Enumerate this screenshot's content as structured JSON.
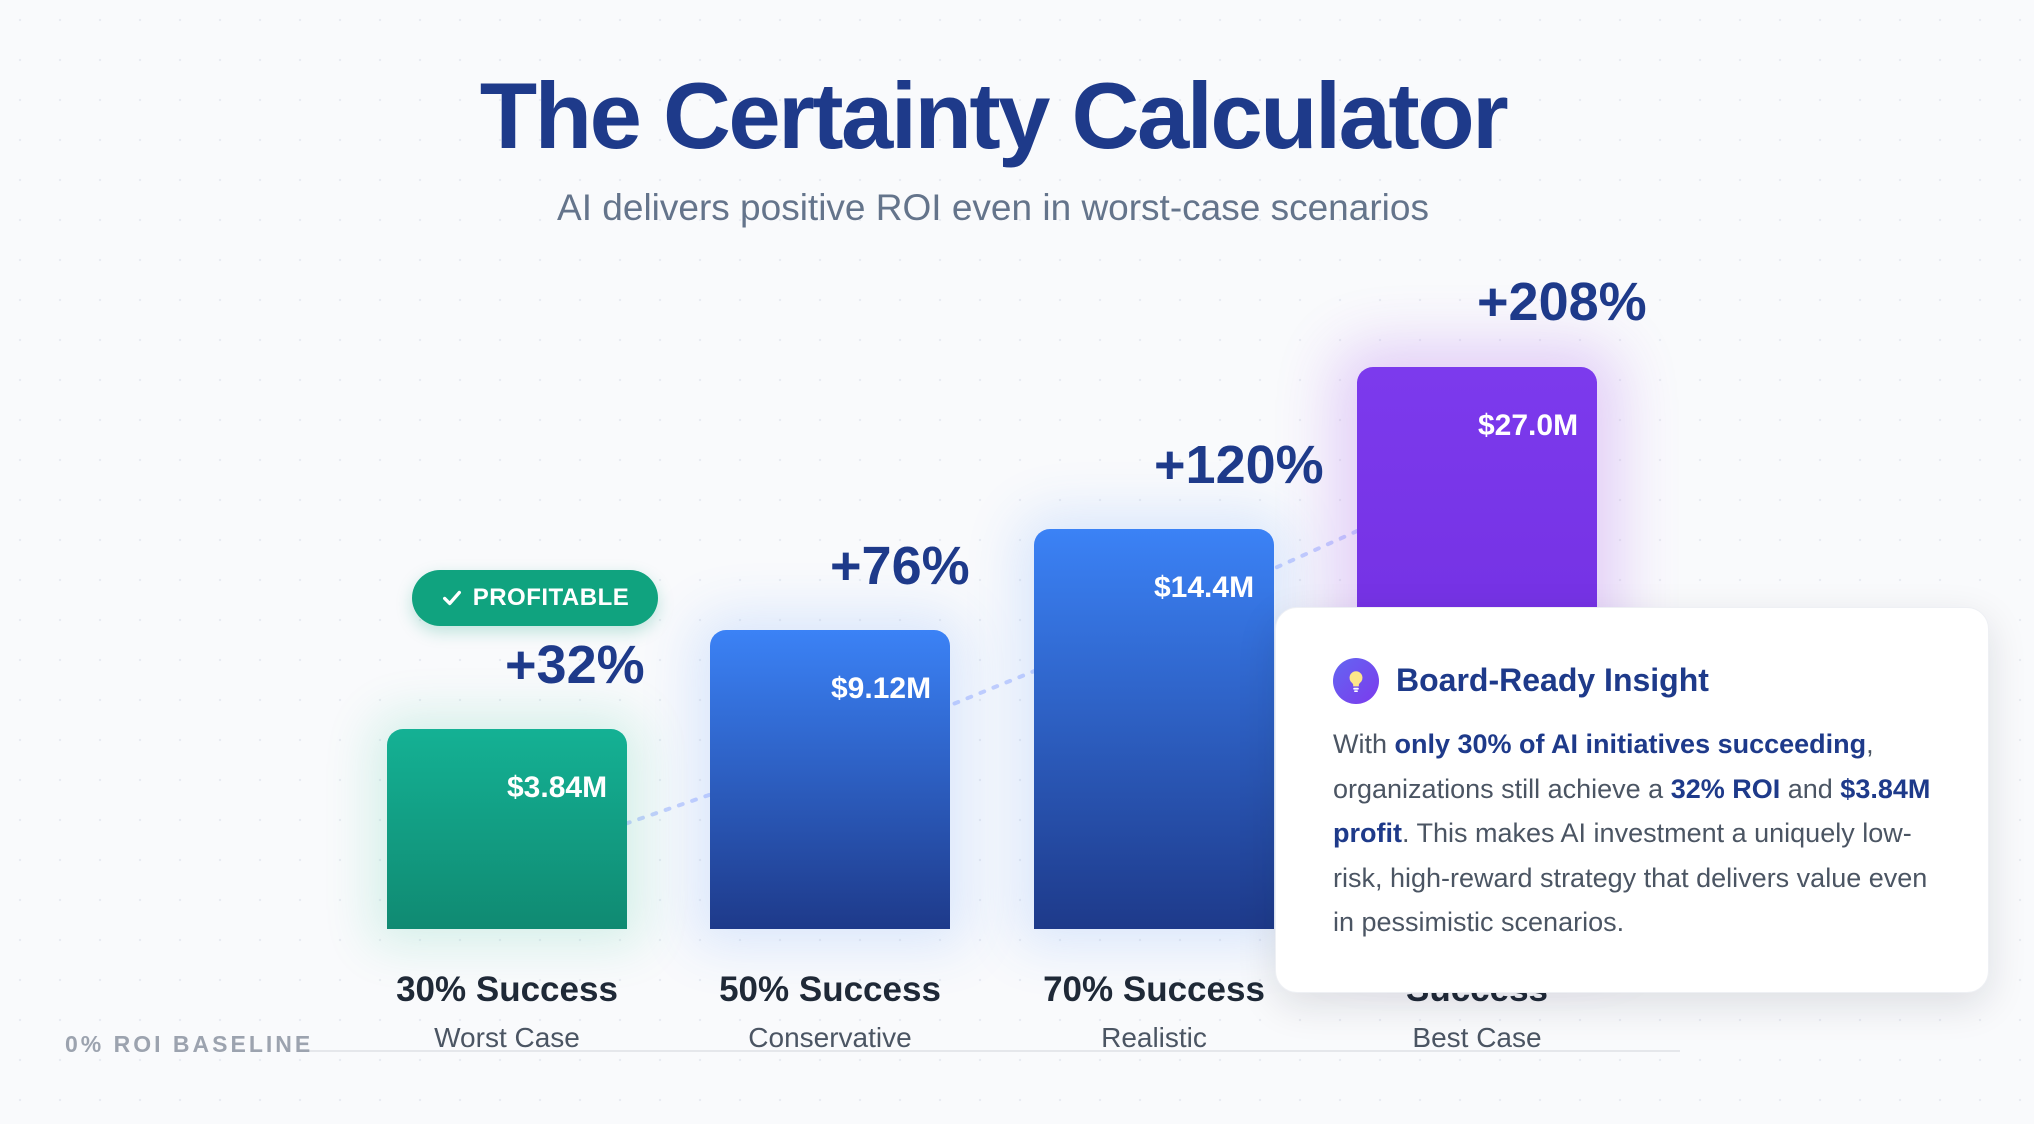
{
  "title": "The Certainty Calculator",
  "subtitle": "AI delivers positive ROI even in worst-case scenarios",
  "badge": {
    "icon": "check-icon",
    "label": "PROFITABLE"
  },
  "baseline_label": "0% ROI BASELINE",
  "chart_data": {
    "type": "bar",
    "title": "The Certainty Calculator",
    "subtitle": "AI delivers positive ROI even in worst-case scenarios",
    "categories": [
      "30% Success",
      "50% Success",
      "70% Success",
      "Success"
    ],
    "category_subtitles": [
      "Worst Case",
      "Conservative",
      "Realistic",
      "Best Case"
    ],
    "values": [
      3.84,
      9.12,
      14.4,
      27.0
    ],
    "value_labels": [
      "$3.84M",
      "$9.12M",
      "$14.4M",
      "$27.0M"
    ],
    "roi": [
      32,
      76,
      120,
      208
    ],
    "roi_labels": [
      "+32%",
      "+76%",
      "+120%",
      "+208%"
    ],
    "bar_colors": [
      "#14b194",
      "#3b82f6",
      "#3b82f6",
      "#7c3aed"
    ],
    "grid": false
  },
  "insight": {
    "icon": "lightbulb-icon",
    "title": "Board-Ready Insight",
    "text_1": "With ",
    "bold_1": "only 30% of AI initiatives succeeding",
    "text_2": ", organizations still achieve a ",
    "bold_2": "32% ROI",
    "text_3": " and ",
    "bold_3": "$3.84M profit",
    "text_4": ". This makes AI investment a uniquely low-risk, high-reward strategy that delivers value even in pessimistic scenarios."
  },
  "colors": {
    "title": "#1e3a8a",
    "profitable_green": "#10a37f",
    "accent_blue": "#3b82f6",
    "accent_purple": "#7c3aed"
  }
}
